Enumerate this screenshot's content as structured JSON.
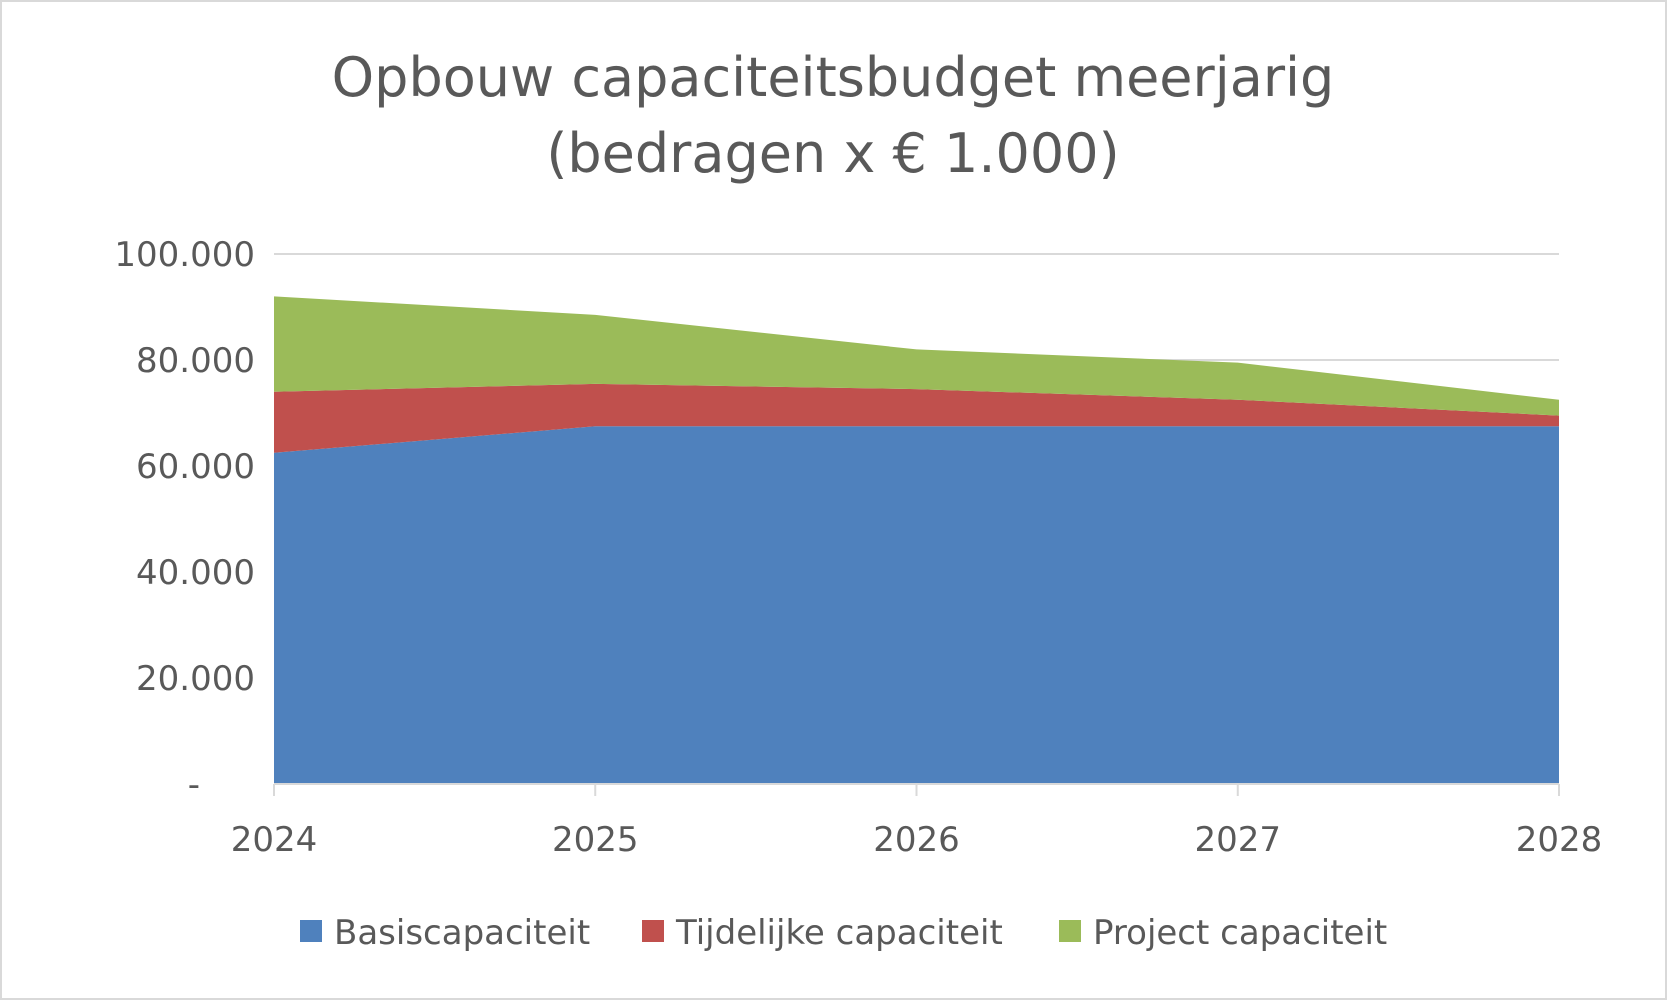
{
  "chart_data": {
    "type": "area",
    "stacked": true,
    "title": "Opbouw capaciteitsbudget meerjarig",
    "subtitle": "(bedragen x € 1.000)",
    "categories": [
      "2024",
      "2025",
      "2026",
      "2027",
      "2028"
    ],
    "series": [
      {
        "name": "Basiscapaciteit",
        "color": "#4f81bd",
        "values": [
          62500,
          67500,
          67500,
          67500,
          67500
        ]
      },
      {
        "name": "Tijdelijke capaciteit",
        "color": "#c0504d",
        "values": [
          11500,
          8000,
          7000,
          5000,
          2000
        ]
      },
      {
        "name": "Project capaciteit",
        "color": "#9bbb59",
        "values": [
          18000,
          13000,
          7500,
          7000,
          3000
        ]
      }
    ],
    "ylim": [
      0,
      100000
    ],
    "yticks": [
      {
        "value": 0,
        "label": "-"
      },
      {
        "value": 20000,
        "label": "20.000"
      },
      {
        "value": 40000,
        "label": "40.000"
      },
      {
        "value": 60000,
        "label": "60.000"
      },
      {
        "value": 80000,
        "label": "80.000"
      },
      {
        "value": 100000,
        "label": "100.000"
      }
    ],
    "grid": true,
    "legend_position": "bottom",
    "xlabel": "",
    "ylabel": ""
  }
}
